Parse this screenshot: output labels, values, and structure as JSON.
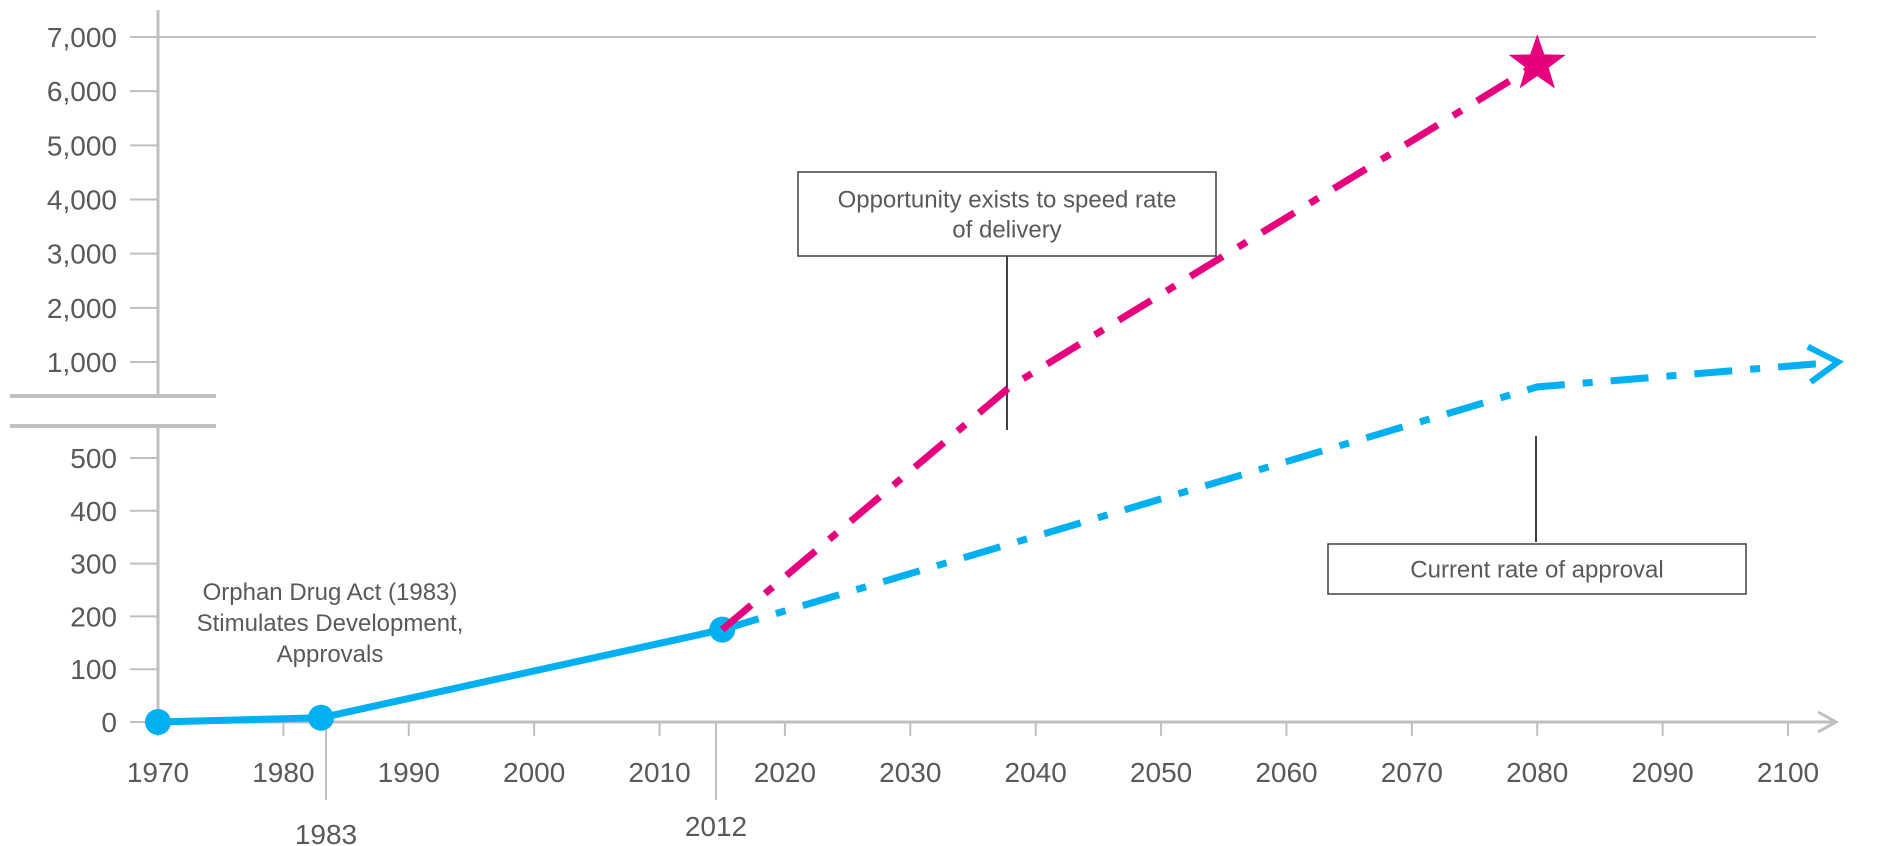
{
  "chart_data": {
    "type": "line",
    "title": "",
    "xlabel": "",
    "ylabel": "",
    "xlim": [
      1970,
      2100
    ],
    "ylim_lower": [
      0,
      500
    ],
    "ylim_upper": [
      1000,
      7000
    ],
    "axis_break": true,
    "x_ticks": [
      "1970",
      "1980",
      "1990",
      "2000",
      "2010",
      "2020",
      "2030",
      "2040",
      "2050",
      "2060",
      "2070",
      "2080",
      "2090",
      "2100"
    ],
    "y_ticks_lower": [
      "0",
      "100",
      "200",
      "300",
      "400",
      "500"
    ],
    "y_ticks_upper": [
      "1,000",
      "2,000",
      "3,000",
      "4,000",
      "5,000",
      "6,000",
      "7,000"
    ],
    "marked_years": [
      "1983",
      "2012"
    ],
    "grid": false,
    "series": [
      {
        "style": "solid",
        "color": "#00b0f0",
        "points": [
          {
            "x": 1970,
            "y": 0
          },
          {
            "x": 1983,
            "y": 8
          },
          {
            "x": 2015,
            "y": 175
          }
        ]
      },
      {
        "style": "dash-dot",
        "color": "#00b0f0",
        "end_marker": "arrow",
        "points": [
          {
            "x": 2015,
            "y": 175
          },
          {
            "x": 2080,
            "y": 540
          },
          {
            "x": 2104,
            "y": 1000
          }
        ]
      },
      {
        "style": "dash-dot",
        "color": "#e6007e",
        "end_marker": "star",
        "points": [
          {
            "x": 2015,
            "y": 175
          },
          {
            "x": 2038,
            "y": 550
          },
          {
            "x": 2080,
            "y": 6500
          }
        ]
      }
    ],
    "annotations": [
      {
        "id": "orphan",
        "lines": [
          "Orphan Drug Act (1983)",
          "Stimulates Development,",
          "Approvals"
        ]
      },
      {
        "id": "opportunity",
        "lines": [
          "Opportunity exists to speed rate",
          "of delivery"
        ]
      },
      {
        "id": "current",
        "lines": [
          "Current rate of approval"
        ]
      }
    ],
    "colors": {
      "cyan": "#00b0f0",
      "magenta": "#e6007e",
      "axis": "#bfbfbf",
      "text": "#595959"
    }
  }
}
